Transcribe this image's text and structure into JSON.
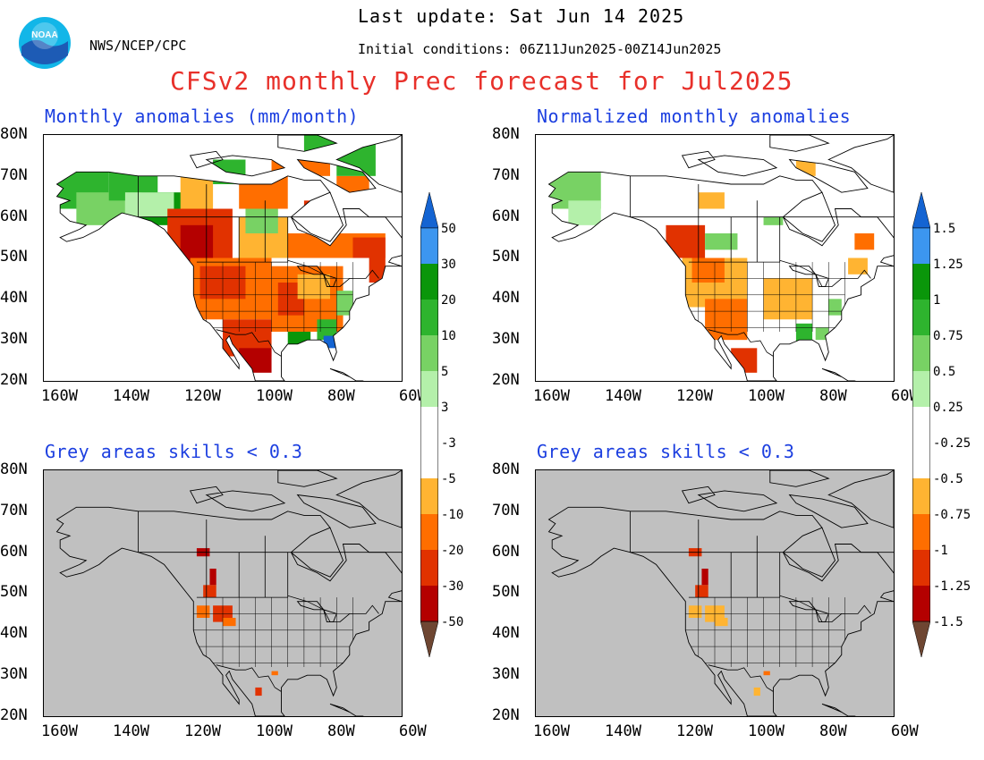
{
  "header": {
    "last_update": "Last update: Sat Jun 14 2025",
    "initial_conditions": "Initial conditions: 06Z11Jun2025-00Z14Jun2025",
    "org": "NWS/NCEP/CPC",
    "main_title": "CFSv2 monthly Prec forecast for Jul2025",
    "logo_text": "NOAA"
  },
  "panels": {
    "top_left_title": "Monthly anomalies (mm/month)",
    "top_right_title": "Normalized monthly anomalies",
    "bottom_left_title": "Grey areas skills < 0.3",
    "bottom_right_title": "Grey areas skills < 0.3"
  },
  "axes": {
    "lat_labels": [
      "80N",
      "70N",
      "60N",
      "50N",
      "40N",
      "30N",
      "20N"
    ],
    "lon_labels": [
      "160W",
      "140W",
      "120W",
      "100W",
      "80W",
      "60W"
    ]
  },
  "colorbar_left": {
    "labels": [
      "50",
      "30",
      "20",
      "10",
      "5",
      "3",
      "-3",
      "-5",
      "-10",
      "-20",
      "-30",
      "-50"
    ]
  },
  "colorbar_right": {
    "labels": [
      "1.5",
      "1.25",
      "1",
      "0.75",
      "0.5",
      "0.25",
      "-0.25",
      "-0.5",
      "-0.75",
      "-1",
      "-1.25",
      "-1.5"
    ]
  },
  "colors": {
    "title_red": "#e8302a",
    "panel_blue": "#1c3fe0",
    "grey_mask": "#c0c0c0",
    "scale": [
      "#1464d2",
      "#3c96f0",
      "#0a960a",
      "#2eb42e",
      "#78d264",
      "#b4f0aa",
      "#ffffff",
      "#ffb432",
      "#ff6e00",
      "#e13200",
      "#b40000",
      "#967864",
      "#6e4632"
    ]
  }
}
